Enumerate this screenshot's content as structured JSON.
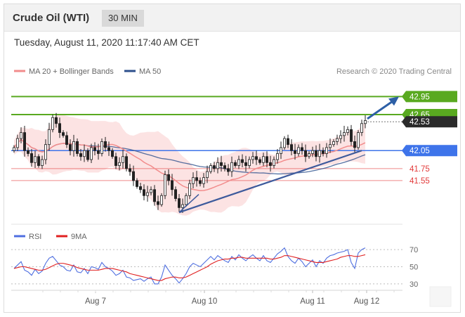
{
  "header": {
    "title": "Crude Oil (WTI)",
    "timeframe": "30 MIN"
  },
  "timestamp": "Tuesday, August 11, 2020 11:17:40 AM CET",
  "legend": {
    "ma20": "MA 20 + Bollinger Bands",
    "ma50": "MA 50"
  },
  "credit": "Research © 2020 Trading Central",
  "rsi_legend": {
    "rsi": "RSI",
    "ma": "9MA"
  },
  "colors": {
    "ma20": "#f28c8c",
    "ma50": "#2c4f8c",
    "band_fill": "#fbd9d9",
    "resistance": "#59a920",
    "pivot": "#3e74ea",
    "support": "#e23a3a",
    "last_price": "#2b2b2b",
    "arrow": "#2d5fa6",
    "rsi": "#4f6fe0",
    "rsi_ma": "#e02020"
  },
  "chart_data": [
    {
      "type": "candlestick",
      "title": "Crude Oil (WTI)",
      "x_tick_labels": [
        "Aug 7",
        "Aug 10",
        "Aug 11",
        "Aug 12"
      ],
      "ylim": [
        40.87,
        43.27
      ],
      "series": [
        {
          "name": "MA 20 + Bollinger Bands"
        },
        {
          "name": "MA 50"
        }
      ],
      "levels": [
        {
          "label": "42.95",
          "value": 42.95,
          "kind": "resistance"
        },
        {
          "label": "42.65",
          "value": 42.65,
          "kind": "resistance"
        },
        {
          "label": "42.53",
          "value": 42.53,
          "kind": "last_price"
        },
        {
          "label": "42.05",
          "value": 42.05,
          "kind": "pivot"
        },
        {
          "label": "41.75",
          "value": 41.75,
          "kind": "support"
        },
        {
          "label": "41.55",
          "value": 41.55,
          "kind": "support"
        }
      ],
      "closes": [
        42.1,
        42.25,
        42.35,
        42.05,
        42.0,
        41.85,
        41.95,
        41.8,
        41.9,
        42.15,
        42.4,
        42.6,
        42.5,
        42.35,
        42.3,
        42.15,
        42.05,
        42.2,
        42.0,
        41.95,
        42.05,
        41.9,
        42.1,
        42.05,
        42.0,
        42.2,
        42.1,
        42.05,
        41.95,
        41.8,
        41.85,
        41.95,
        41.75,
        41.7,
        41.55,
        41.45,
        41.4,
        41.3,
        41.35,
        41.4,
        41.2,
        41.15,
        41.3,
        41.65,
        41.55,
        41.4,
        41.25,
        41.1,
        41.15,
        41.3,
        41.5,
        41.6,
        41.55,
        41.5,
        41.6,
        41.7,
        41.8,
        41.75,
        41.85,
        41.8,
        41.75,
        41.7,
        41.85,
        41.8,
        41.9,
        41.85,
        41.8,
        41.9,
        41.95,
        41.9,
        41.85,
        41.95,
        41.85,
        41.8,
        41.9,
        42.0,
        42.1,
        42.25,
        42.15,
        42.05,
        42.0,
        42.1,
        42.05,
        41.95,
        42.0,
        42.05,
        41.95,
        42.05,
        42.0,
        42.1,
        42.15,
        42.2,
        42.25,
        42.3,
        42.35,
        42.4,
        42.2,
        42.1,
        42.35,
        42.5,
        42.55
      ]
    },
    {
      "type": "line",
      "title": "RSI",
      "x_tick_labels": [
        "Aug 7",
        "Aug 10",
        "Aug 11",
        "Aug 12"
      ],
      "y_ticks": [
        30,
        50,
        70
      ],
      "ylim": [
        25,
        75
      ],
      "series": [
        {
          "name": "RSI",
          "values": [
            48,
            52,
            56,
            46,
            44,
            40,
            47,
            42,
            45,
            54,
            60,
            62,
            57,
            52,
            50,
            46,
            45,
            52,
            44,
            43,
            48,
            42,
            50,
            49,
            47,
            55,
            50,
            48,
            45,
            40,
            42,
            46,
            38,
            37,
            34,
            35,
            36,
            33,
            36,
            38,
            30,
            30,
            38,
            52,
            46,
            40,
            36,
            31,
            36,
            42,
            50,
            54,
            52,
            50,
            54,
            58,
            62,
            58,
            63,
            60,
            57,
            55,
            62,
            58,
            64,
            60,
            57,
            61,
            64,
            60,
            57,
            63,
            57,
            55,
            60,
            65,
            68,
            72,
            62,
            57,
            54,
            60,
            56,
            50,
            54,
            58,
            50,
            57,
            54,
            60,
            63,
            64,
            66,
            67,
            68,
            70,
            55,
            48,
            66,
            70,
            72
          ]
        },
        {
          "name": "9MA",
          "values": [
            48,
            49,
            50,
            50,
            49,
            48,
            47,
            46,
            46,
            47,
            49,
            51,
            53,
            54,
            54,
            53,
            52,
            51,
            49,
            48,
            47,
            46,
            46,
            46,
            46,
            47,
            48,
            48,
            48,
            47,
            46,
            45,
            44,
            42,
            41,
            40,
            39,
            38,
            37,
            36,
            35,
            34,
            34,
            36,
            37,
            38,
            38,
            37,
            37,
            38,
            40,
            42,
            44,
            46,
            48,
            50,
            53,
            55,
            57,
            58,
            59,
            59,
            60,
            60,
            61,
            61,
            60,
            60,
            60,
            60,
            60,
            60,
            60,
            59,
            59,
            60,
            61,
            63,
            63,
            62,
            61,
            60,
            59,
            58,
            57,
            56,
            55,
            55,
            55,
            56,
            57,
            58,
            59,
            61,
            62,
            63,
            63,
            62,
            62,
            63,
            64
          ]
        }
      ]
    }
  ]
}
